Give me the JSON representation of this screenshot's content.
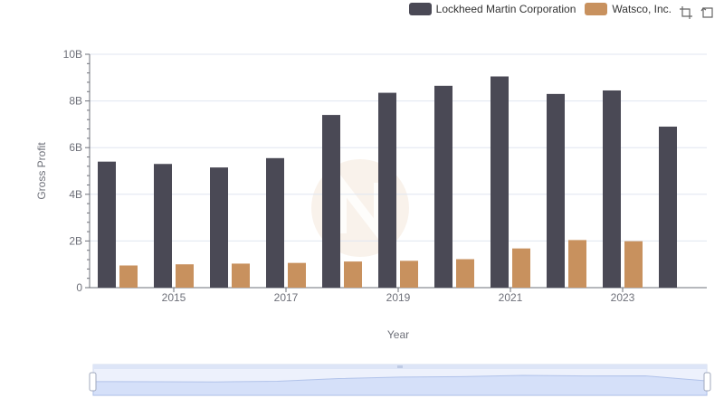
{
  "legend": {
    "items": [
      {
        "name": "Lockheed Martin Corporation",
        "color": "#4a4955"
      },
      {
        "name": "Watsco, Inc.",
        "color": "#c8915e"
      }
    ]
  },
  "toolbox": {
    "icons": [
      "zoom-icon",
      "restore-icon"
    ]
  },
  "chart_data": {
    "type": "bar",
    "xlabel": "Year",
    "ylabel": "Gross Profit",
    "categories": [
      "2014",
      "2015",
      "2016",
      "2017",
      "2018",
      "2019",
      "2020",
      "2021",
      "2022",
      "2023",
      "2024"
    ],
    "x_tick_labels": [
      "2015",
      "2017",
      "2019",
      "2021",
      "2023"
    ],
    "y_tick_labels": [
      "0",
      "2B",
      "4B",
      "6B",
      "8B",
      "10B"
    ],
    "ylim": [
      0,
      10000000000
    ],
    "grid": true,
    "legend_position": "top-right",
    "series": [
      {
        "name": "Lockheed Martin Corporation",
        "color": "#4a4955",
        "values": [
          5400000000,
          5300000000,
          5150000000,
          5550000000,
          7400000000,
          8350000000,
          8650000000,
          9050000000,
          8300000000,
          8450000000,
          6900000000
        ]
      },
      {
        "name": "Watsco, Inc.",
        "color": "#c8915e",
        "values": [
          950000000,
          1000000000,
          1030000000,
          1060000000,
          1120000000,
          1150000000,
          1220000000,
          1680000000,
          2040000000,
          1990000000,
          null
        ]
      }
    ]
  }
}
